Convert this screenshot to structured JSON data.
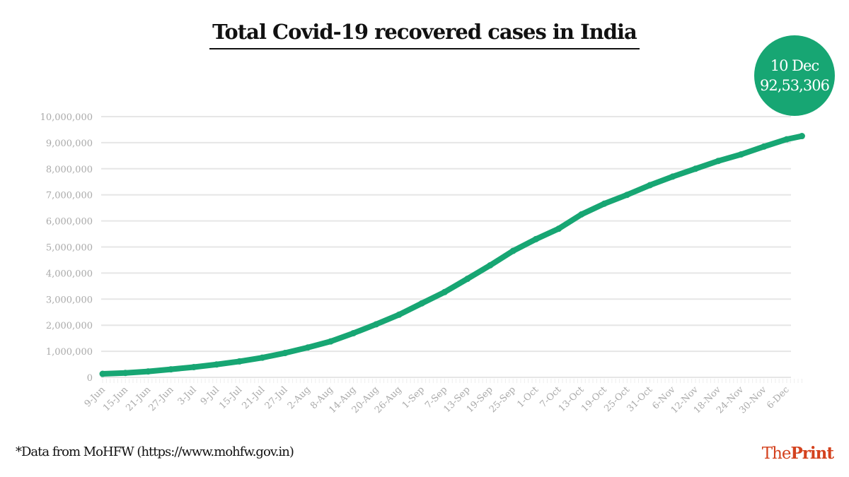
{
  "chart_data": {
    "type": "line",
    "title": "Total Covid-19 recovered cases in India",
    "xlabel": "",
    "ylabel": "",
    "ylim": [
      0,
      10000000
    ],
    "yticks": [
      0,
      1000000,
      2000000,
      3000000,
      4000000,
      5000000,
      6000000,
      7000000,
      8000000,
      9000000,
      10000000
    ],
    "ytick_labels": [
      "0",
      "1,000,000",
      "2,000,000",
      "3,000,000",
      "4,000,000",
      "5,000,000",
      "6,000,000",
      "7,000,000",
      "8,000,000",
      "9,000,000",
      "10,000,000"
    ],
    "xtick_labels": [
      "9-Jun",
      "15-Jun",
      "21-Jun",
      "27-Jun",
      "3-Jul",
      "9-Jul",
      "15-Jul",
      "21-Jul",
      "27-Jul",
      "2-Aug",
      "8-Aug",
      "14-Aug",
      "20-Aug",
      "26-Aug",
      "1-Sep",
      "7-Sep",
      "13-Sep",
      "19-Sep",
      "25-Sep",
      "1-Oct",
      "7-Oct",
      "13-Oct",
      "19-Oct",
      "25-Oct",
      "31-Oct",
      "6-Nov",
      "12-Nov",
      "18-Nov",
      "24-Nov",
      "30-Nov",
      "6-Dec"
    ],
    "grid": true,
    "color": "#17a673",
    "x": [
      "9-Jun",
      "15-Jun",
      "21-Jun",
      "27-Jun",
      "3-Jul",
      "9-Jul",
      "15-Jul",
      "21-Jul",
      "27-Jul",
      "2-Aug",
      "8-Aug",
      "14-Aug",
      "20-Aug",
      "26-Aug",
      "1-Sep",
      "7-Sep",
      "13-Sep",
      "19-Sep",
      "25-Sep",
      "1-Oct",
      "7-Oct",
      "13-Oct",
      "19-Oct",
      "25-Oct",
      "31-Oct",
      "6-Nov",
      "12-Nov",
      "18-Nov",
      "24-Nov",
      "30-Nov",
      "6-Dec",
      "10-Dec"
    ],
    "values": [
      135000,
      170000,
      227000,
      309000,
      394000,
      495000,
      612000,
      754000,
      934000,
      1145000,
      1378000,
      1695000,
      2037000,
      2404000,
      2839000,
      3271000,
      3780000,
      4300000,
      4850000,
      5300000,
      5700000,
      6250000,
      6660000,
      7000000,
      7370000,
      7700000,
      8000000,
      8300000,
      8550000,
      8850000,
      9130000,
      9253306
    ],
    "annotation": {
      "date": "10 Dec",
      "value": "92,53,306"
    }
  },
  "source": "*Data from MoHFW (https://www.mohfw.gov.in)",
  "logo": {
    "the": "The",
    "print": "Print",
    "color": "#d4421e"
  }
}
